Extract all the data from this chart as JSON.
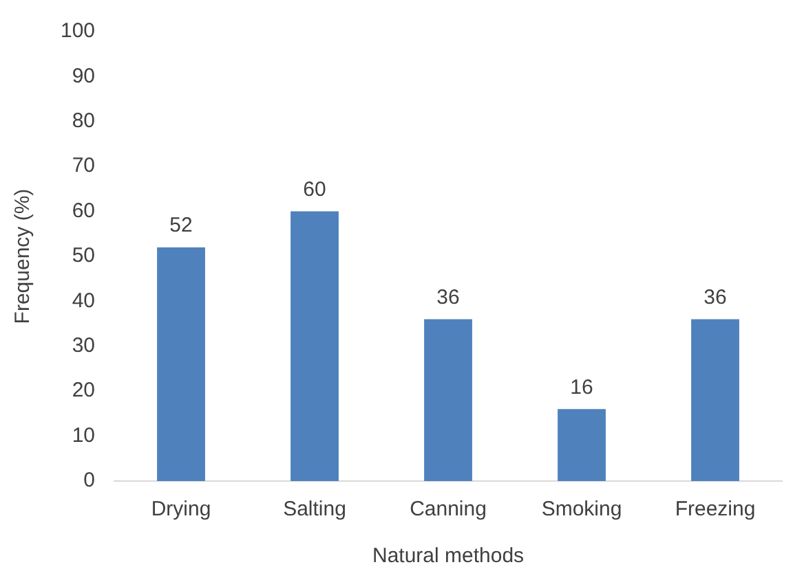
{
  "chart_data": {
    "type": "bar",
    "xlabel": "Natural methods",
    "ylabel": "Frequency (%)",
    "categories": [
      "Drying",
      "Salting",
      "Canning",
      "Smoking",
      "Freezing"
    ],
    "values": [
      52,
      60,
      36,
      16,
      36
    ],
    "color": "#4f81bd",
    "ylim": [
      0,
      100
    ],
    "yticks": [
      0,
      10,
      20,
      30,
      40,
      50,
      60,
      70,
      80,
      90,
      100
    ],
    "grid": false,
    "legend": false,
    "data_labels": true
  }
}
